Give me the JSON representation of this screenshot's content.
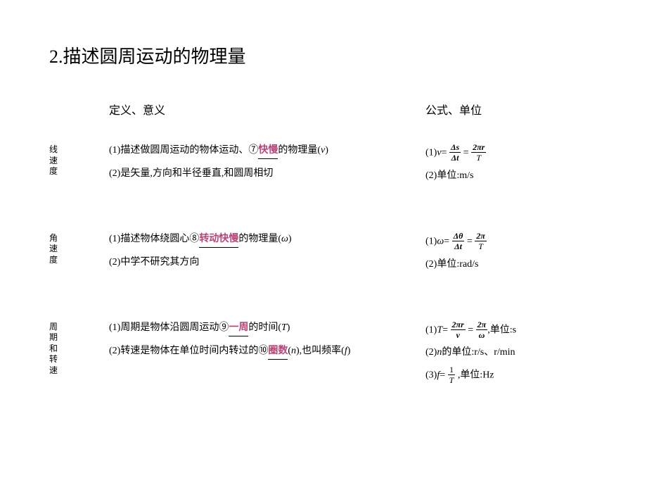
{
  "title": "2.描述圆周运动的物理量",
  "header": {
    "def": "定义、意义",
    "formula": "公式、单位"
  },
  "rows": [
    {
      "label": "线速度",
      "def1_pre": "(1)描述做圆周运动的物体运动、",
      "def1_circ": "⑦",
      "def1_fill": "快慢",
      "def1_post": "的物理量(",
      "def1_sym": "v",
      "def1_end": ")",
      "def2": "(2)是矢量,方向和半径垂直,和圆周相切",
      "f1_lead": "(1)",
      "f1_sym": "v",
      "f1_eq": "=",
      "f1_n1": "Δs",
      "f1_d1": "Δt",
      "f1_eq2": "=",
      "f1_n2": "2πr",
      "f1_d2": "T",
      "f2": "(2)单位:m/s"
    },
    {
      "label": "角速度",
      "def1_pre": "(1)描述物体绕圆心",
      "def1_circ": "⑧",
      "def1_fill": "转动快慢",
      "def1_post": "的物理量(",
      "def1_sym": "ω",
      "def1_end": ")",
      "def2": "(2)中学不研究其方向",
      "f1_lead": "(1)",
      "f1_sym": "ω",
      "f1_eq": "=",
      "f1_n1": "Δθ",
      "f1_d1": "Δt",
      "f1_eq2": "=",
      "f1_n2": "2π",
      "f1_d2": "T",
      "f2": "(2)单位:rad/s"
    },
    {
      "label": "周期和转速",
      "def1_pre": "(1)周期是物体沿圆周运动",
      "def1_circ": "⑨",
      "def1_fill": "一周",
      "def1_post": "的时间(",
      "def1_sym": "T",
      "def1_end": ")",
      "def2_pre": "(2)转速是物体在单位时间内转过的",
      "def2_circ": "⑩",
      "def2_fill": "圈数",
      "def2_post": "(",
      "def2_sym": "n",
      "def2_mid": "),也叫频率(",
      "def2_sym2": "f",
      "def2_end": ")",
      "f1_lead": "(1)",
      "f1_sym": "T",
      "f1_eq": "=",
      "f1_n1": "2πr",
      "f1_d1": "v",
      "f1_eq2": "=",
      "f1_n2": "2π",
      "f1_d2": "ω",
      "f1_tail": ",单位:s",
      "f2_pre": "(2)",
      "f2_sym": "n",
      "f2_post": "的单位:r/s、r/min",
      "f3_lead": "(3)",
      "f3_sym": "f",
      "f3_eq": "=",
      "f3_n": "1",
      "f3_d": "T",
      "f3_tail": ",单位:Hz"
    }
  ],
  "colors": {
    "fill": "#b8457a",
    "text": "#000000",
    "bg": "#ffffff"
  }
}
